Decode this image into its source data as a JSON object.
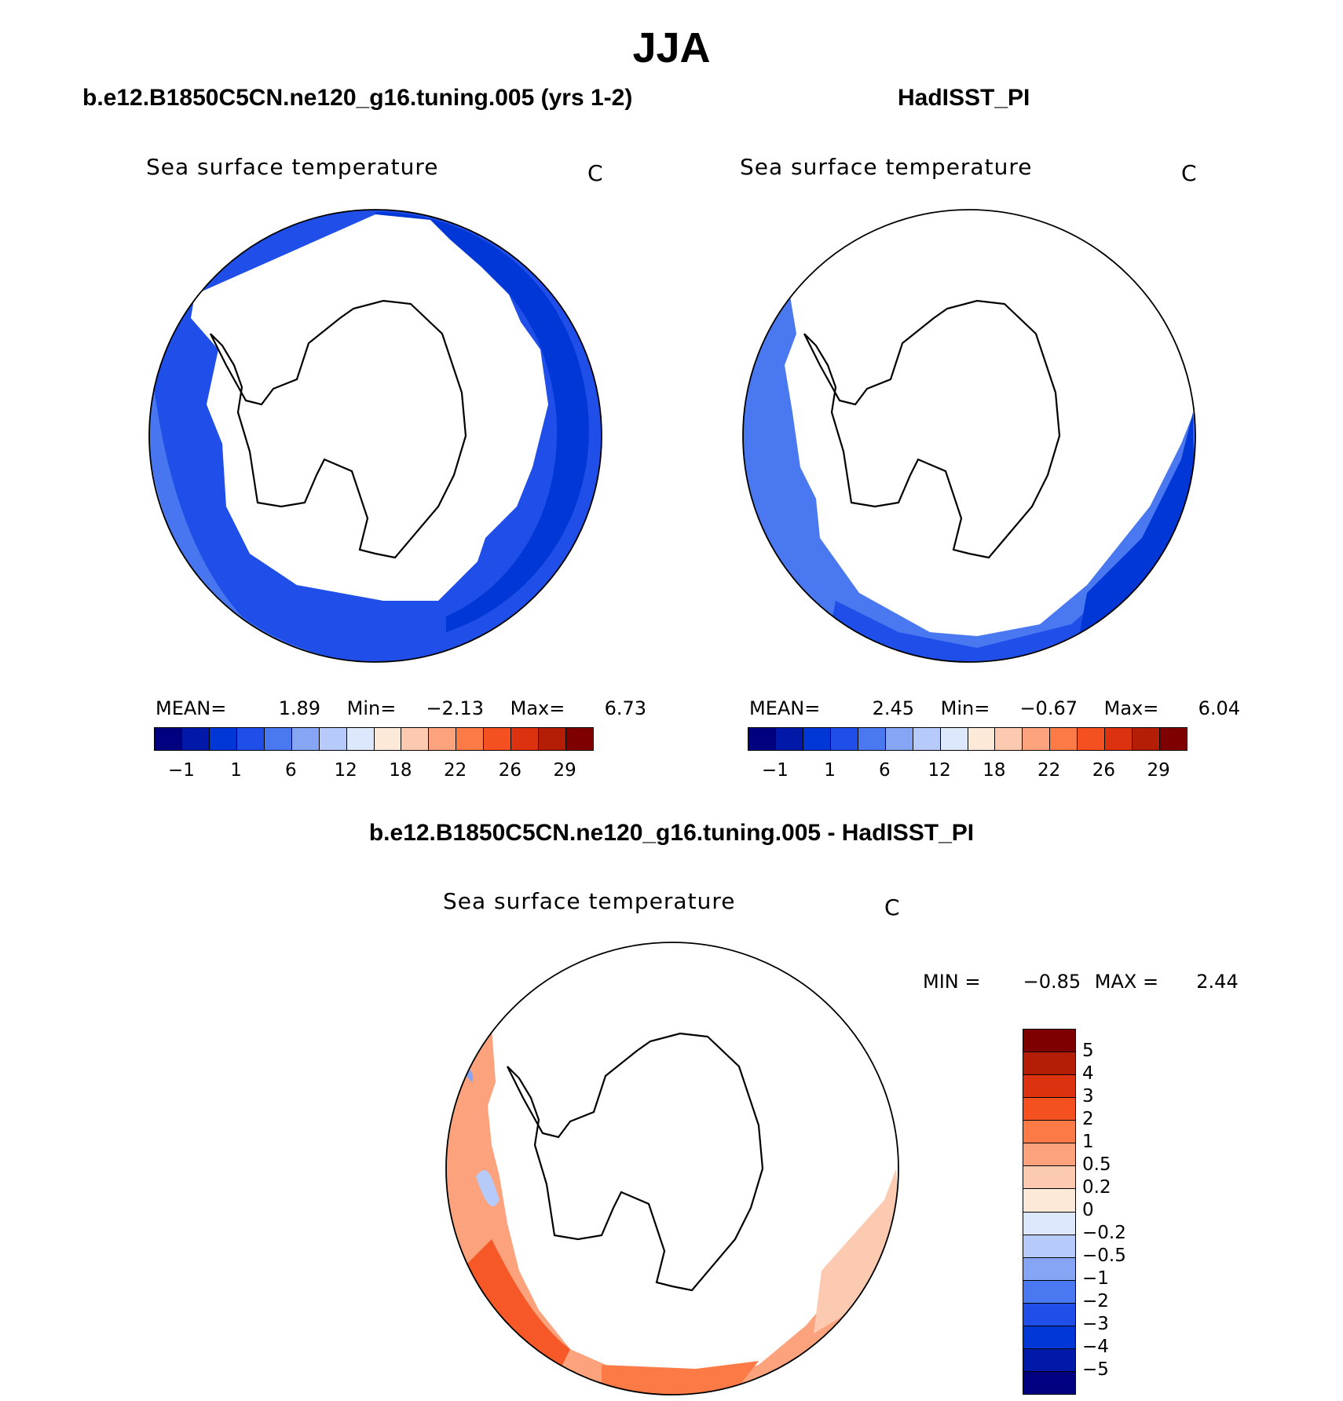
{
  "title": "JJA",
  "panels": [
    {
      "case": "b.e12.B1850C5CN.ne120_g16.tuning.005 (yrs 1-2)",
      "variable": "Sea surface temperature",
      "units": "C",
      "stats": {
        "mean_label": "MEAN=",
        "mean": "1.89",
        "min_label": "Min=",
        "min": "−2.13",
        "max_label": "Max=",
        "max": "6.73"
      }
    },
    {
      "case": "HadISST_PI",
      "variable": "Sea surface temperature",
      "units": "C",
      "stats": {
        "mean_label": "MEAN=",
        "mean": "2.45",
        "min_label": "Min=",
        "min": "−0.67",
        "max_label": "Max=",
        "max": "6.04"
      }
    }
  ],
  "diff_panel": {
    "case": "b.e12.B1850C5CN.ne120_g16.tuning.005 - HadISST_PI",
    "variable": "Sea surface temperature",
    "units": "C",
    "stats": {
      "min_label": "MIN =",
      "min": "−0.85",
      "max_label": "MAX =",
      "max": "2.44"
    }
  },
  "colorbar_sst": {
    "colors": [
      "#000080",
      "#0019a8",
      "#0037d6",
      "#1f4fe8",
      "#4a78f0",
      "#86a6f5",
      "#b7cbfa",
      "#dde8fd",
      "#fde9d8",
      "#fccab0",
      "#fca27c",
      "#fb7a45",
      "#f5501f",
      "#dc3210",
      "#b41e07",
      "#7f0000"
    ],
    "labels": [
      "−1",
      "1",
      "6",
      "12",
      "18",
      "22",
      "26",
      "29"
    ]
  },
  "colorbar_diff": {
    "colors": [
      "#7f0000",
      "#b41e07",
      "#dc3210",
      "#f5501f",
      "#fb7a45",
      "#fca27c",
      "#fccab0",
      "#fde9d8",
      "#dde8fd",
      "#b7cbfa",
      "#86a6f5",
      "#4a78f0",
      "#1f4fe8",
      "#0037d6",
      "#0019a8",
      "#000080"
    ],
    "labels": [
      "5",
      "4",
      "3",
      "2",
      "1",
      "0.5",
      "0.2",
      "0",
      "−0.2",
      "−0.5",
      "−1",
      "−2",
      "−3",
      "−4",
      "−5"
    ]
  }
}
